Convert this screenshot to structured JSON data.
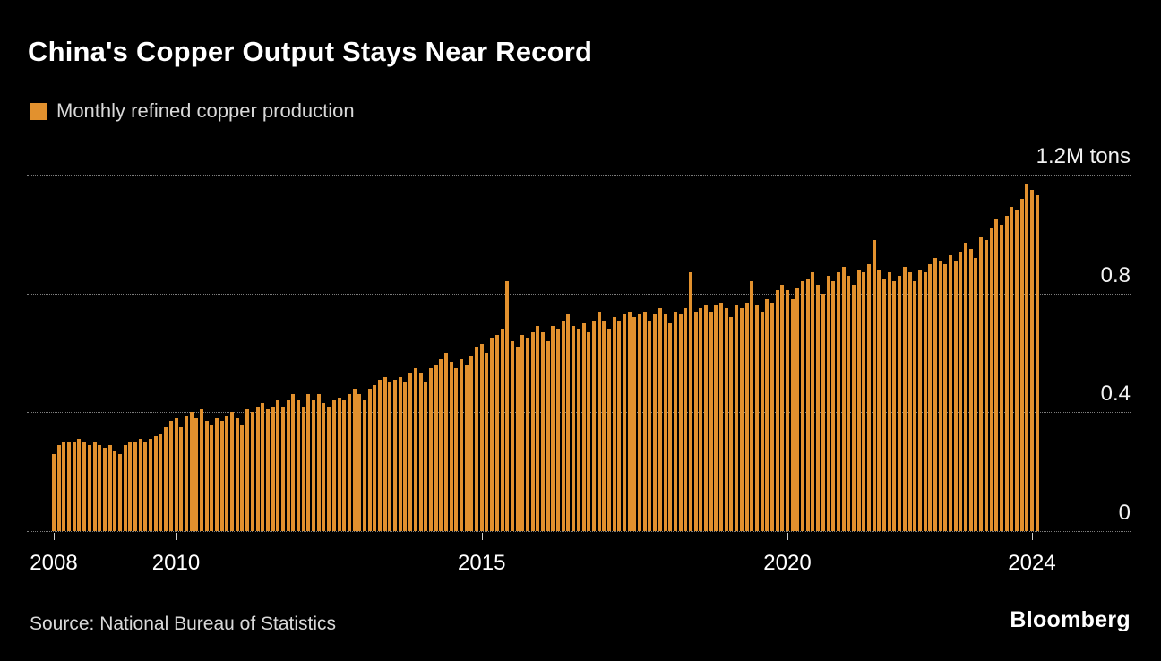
{
  "header": {
    "title": "China's Copper Output Stays Near Record",
    "legend_label": "Monthly refined copper production"
  },
  "footer": {
    "source": "Source: National Bureau of Statistics",
    "brand": "Bloomberg"
  },
  "chart_data": {
    "type": "bar",
    "title": "China's Copper Output Stays Near Record",
    "series_name": "Monthly refined copper production",
    "unit": "M tons",
    "frequency": "monthly",
    "start": "2008-01",
    "end": "2024-02",
    "ylim": [
      0,
      1.2
    ],
    "yticks": [
      {
        "value": 0,
        "label": "0"
      },
      {
        "value": 0.4,
        "label": "0.4"
      },
      {
        "value": 0.8,
        "label": "0.8"
      },
      {
        "value": 1.2,
        "label": "1.2M tons"
      }
    ],
    "xticks": [
      {
        "year": 2008,
        "label": "2008"
      },
      {
        "year": 2010,
        "label": "2010"
      },
      {
        "year": 2015,
        "label": "2015"
      },
      {
        "year": 2020,
        "label": "2020"
      },
      {
        "year": 2024,
        "label": "2024"
      }
    ],
    "grid": "dotted horizontal",
    "legend_position": "top-left",
    "bar_color": "#E2912E",
    "background": "#000000",
    "values": [
      0.26,
      0.29,
      0.3,
      0.3,
      0.3,
      0.31,
      0.3,
      0.29,
      0.3,
      0.29,
      0.28,
      0.29,
      0.27,
      0.26,
      0.29,
      0.3,
      0.3,
      0.31,
      0.3,
      0.31,
      0.32,
      0.33,
      0.35,
      0.37,
      0.38,
      0.35,
      0.39,
      0.4,
      0.38,
      0.41,
      0.37,
      0.36,
      0.38,
      0.37,
      0.39,
      0.4,
      0.38,
      0.36,
      0.41,
      0.4,
      0.42,
      0.43,
      0.41,
      0.42,
      0.44,
      0.42,
      0.44,
      0.46,
      0.44,
      0.42,
      0.46,
      0.44,
      0.46,
      0.43,
      0.42,
      0.44,
      0.45,
      0.44,
      0.46,
      0.48,
      0.46,
      0.44,
      0.48,
      0.49,
      0.51,
      0.52,
      0.5,
      0.51,
      0.52,
      0.5,
      0.53,
      0.55,
      0.53,
      0.5,
      0.55,
      0.56,
      0.58,
      0.6,
      0.57,
      0.55,
      0.58,
      0.56,
      0.59,
      0.62,
      0.63,
      0.6,
      0.65,
      0.66,
      0.68,
      0.84,
      0.64,
      0.62,
      0.66,
      0.65,
      0.67,
      0.69,
      0.67,
      0.64,
      0.69,
      0.68,
      0.71,
      0.73,
      0.69,
      0.68,
      0.7,
      0.67,
      0.71,
      0.74,
      0.71,
      0.68,
      0.72,
      0.71,
      0.73,
      0.74,
      0.72,
      0.73,
      0.74,
      0.71,
      0.73,
      0.75,
      0.73,
      0.7,
      0.74,
      0.73,
      0.75,
      0.87,
      0.74,
      0.75,
      0.76,
      0.74,
      0.76,
      0.77,
      0.75,
      0.72,
      0.76,
      0.75,
      0.77,
      0.84,
      0.76,
      0.74,
      0.78,
      0.77,
      0.81,
      0.83,
      0.81,
      0.78,
      0.82,
      0.84,
      0.85,
      0.87,
      0.83,
      0.8,
      0.86,
      0.84,
      0.87,
      0.89,
      0.86,
      0.83,
      0.88,
      0.87,
      0.9,
      0.98,
      0.88,
      0.85,
      0.87,
      0.84,
      0.86,
      0.89,
      0.87,
      0.84,
      0.88,
      0.87,
      0.9,
      0.92,
      0.91,
      0.9,
      0.93,
      0.91,
      0.94,
      0.97,
      0.95,
      0.92,
      0.99,
      0.98,
      1.02,
      1.05,
      1.03,
      1.06,
      1.09,
      1.08,
      1.12,
      1.17,
      1.15,
      1.13
    ]
  }
}
